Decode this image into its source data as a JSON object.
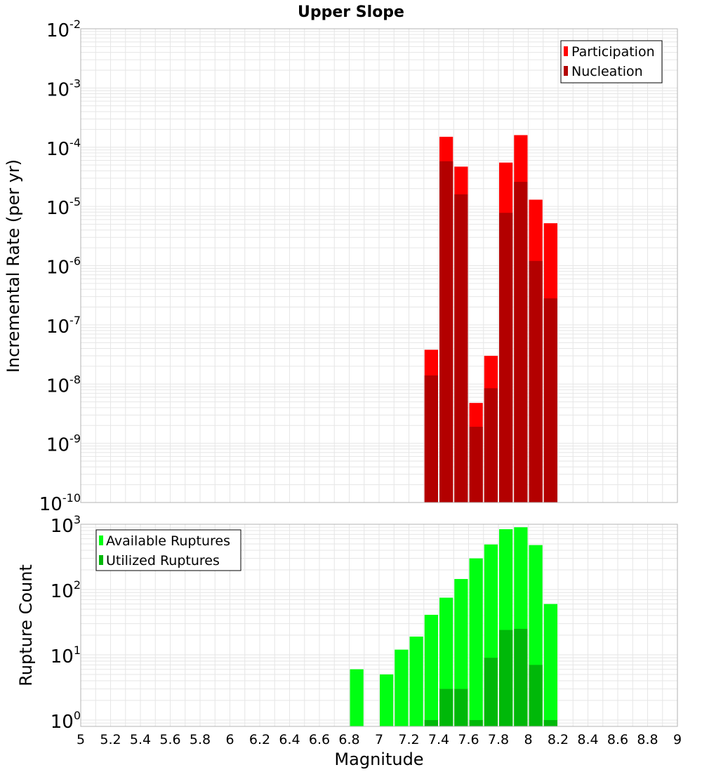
{
  "chart_data": [
    {
      "type": "bar",
      "title": "Upper Slope",
      "xlabel": "",
      "ylabel": "Incremental Rate (per yr)",
      "yscale": "log",
      "xlim": [
        5,
        9
      ],
      "ylim": [
        1e-10,
        0.01
      ],
      "grid": true,
      "legend_position": "top-right",
      "x": [
        7.35,
        7.45,
        7.55,
        7.65,
        7.75,
        7.85,
        7.95,
        8.05,
        8.15
      ],
      "series": [
        {
          "name": "Participation",
          "color": "#ff0000",
          "values": [
            3.8e-08,
            0.00015,
            4.7e-05,
            4.8e-09,
            3e-08,
            5.5e-05,
            0.00016,
            1.3e-05,
            5.2e-06
          ]
        },
        {
          "name": "Nucleation",
          "color": "#b30000",
          "values": [
            1.4e-08,
            5.8e-05,
            1.6e-05,
            1.9e-09,
            8.5e-09,
            7.8e-06,
            2.6e-05,
            1.2e-06,
            2.8e-07
          ]
        }
      ],
      "y_tick_labels": [
        {
          "base": "10",
          "exp": "-2"
        },
        {
          "base": "10",
          "exp": "-3"
        },
        {
          "base": "10",
          "exp": "-4"
        },
        {
          "base": "10",
          "exp": "-5"
        },
        {
          "base": "10",
          "exp": "-6"
        },
        {
          "base": "10",
          "exp": "-7"
        },
        {
          "base": "10",
          "exp": "-8"
        },
        {
          "base": "10",
          "exp": "-9"
        },
        {
          "base": "10",
          "exp": "-10"
        }
      ]
    },
    {
      "type": "bar",
      "title": "",
      "xlabel": "Magnitude",
      "ylabel": "Rupture Count",
      "yscale": "log",
      "xlim": [
        5,
        9
      ],
      "ylim": [
        0.8,
        1000
      ],
      "grid": true,
      "legend_position": "top-left",
      "x": [
        6.85,
        7.05,
        7.15,
        7.25,
        7.35,
        7.45,
        7.55,
        7.65,
        7.75,
        7.85,
        7.95,
        8.05,
        8.15
      ],
      "series": [
        {
          "name": "Available Ruptures",
          "color": "#00ff12",
          "values": [
            6,
            5,
            12,
            19,
            41,
            75,
            145,
            300,
            490,
            840,
            900,
            480,
            60
          ]
        },
        {
          "name": "Utilized Ruptures",
          "color": "#00b809",
          "values": [
            0,
            0,
            0,
            0,
            1,
            3,
            3,
            1,
            9,
            24,
            25,
            7,
            1
          ]
        }
      ],
      "y_tick_labels": [
        {
          "base": "10",
          "exp": "3"
        },
        {
          "base": "10",
          "exp": "2"
        },
        {
          "base": "10",
          "exp": "1"
        },
        {
          "base": "10",
          "exp": "0"
        }
      ],
      "x_tick_labels": [
        "5",
        "5.2",
        "5.4",
        "5.6",
        "5.8",
        "6",
        "6.2",
        "6.4",
        "6.6",
        "6.8",
        "7",
        "7.2",
        "7.4",
        "7.6",
        "7.8",
        "8",
        "8.2",
        "8.4",
        "8.6",
        "8.8",
        "9"
      ]
    }
  ]
}
